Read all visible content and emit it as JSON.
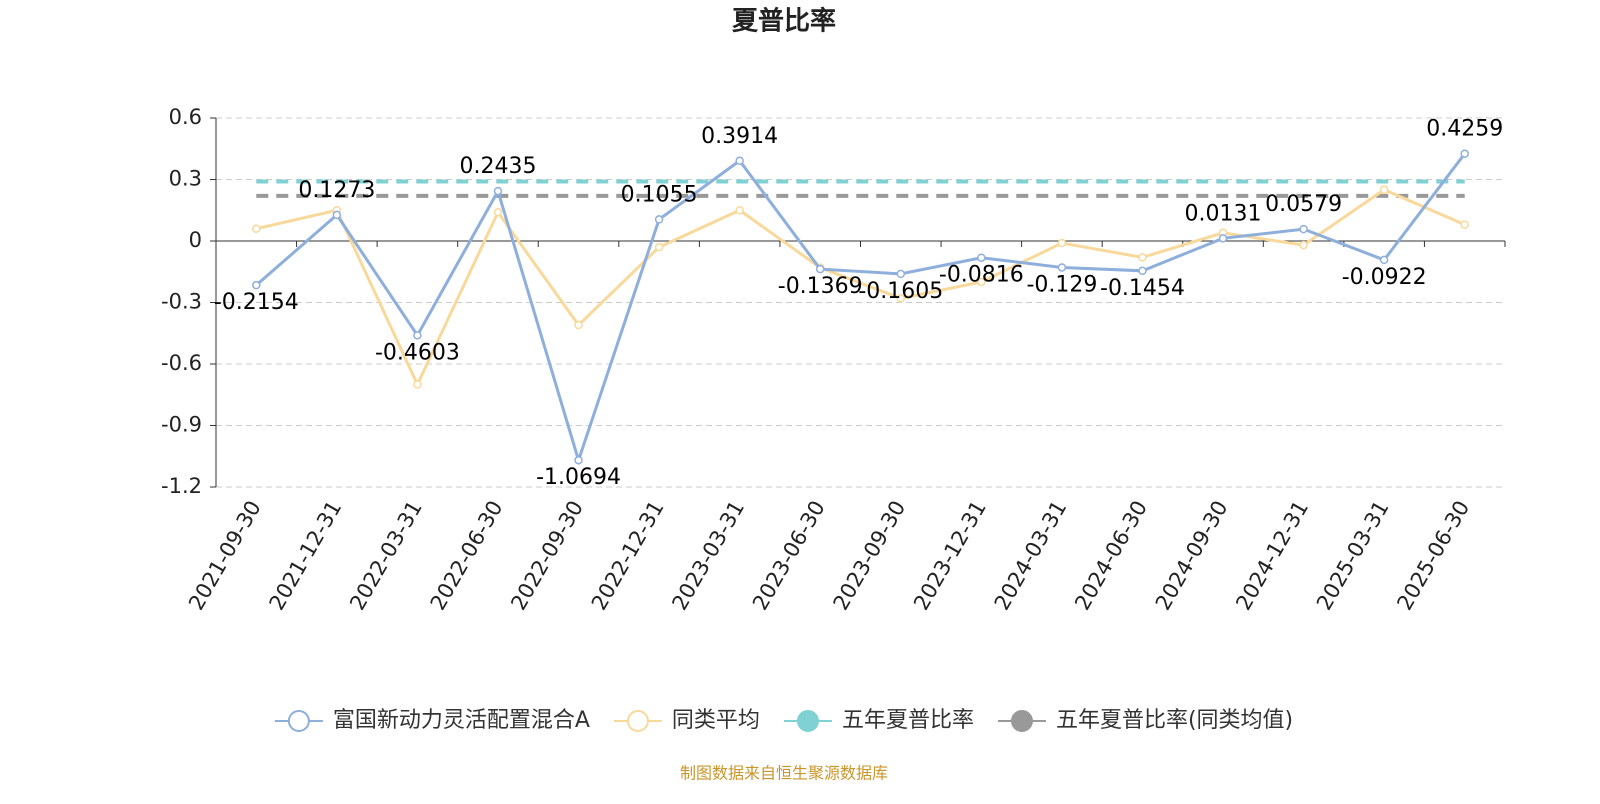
{
  "chart_data": {
    "type": "line",
    "title": "夏普比率",
    "categories": [
      "2021-09-30",
      "2021-12-31",
      "2022-03-31",
      "2022-06-30",
      "2022-09-30",
      "2022-12-31",
      "2023-03-31",
      "2023-06-30",
      "2023-09-30",
      "2023-12-31",
      "2024-03-31",
      "2024-06-30",
      "2024-09-30",
      "2024-12-31",
      "2025-03-31",
      "2025-06-30"
    ],
    "series": [
      {
        "name": "富国新动力灵活配置混合A",
        "color": "#8eaedb",
        "marker": "hollow",
        "labels": true,
        "values": [
          -0.2154,
          0.1273,
          -0.4603,
          0.2435,
          -1.0694,
          0.1055,
          0.3914,
          -0.1369,
          -0.1605,
          -0.0816,
          -0.129,
          -0.1454,
          0.0131,
          0.0579,
          -0.0922,
          0.4259
        ]
      },
      {
        "name": "同类平均",
        "color": "#f9d99b",
        "marker": "hollow",
        "values": [
          0.06,
          0.15,
          -0.7,
          0.14,
          -0.41,
          -0.03,
          0.15,
          -0.13,
          -0.28,
          -0.2,
          -0.01,
          -0.08,
          0.04,
          -0.02,
          0.25,
          0.08
        ]
      },
      {
        "name": "五年夏普比率",
        "color": "#7fd1d3",
        "marker": "filled",
        "dashed": true,
        "values": [
          0.29,
          0.29,
          0.29,
          0.29,
          0.29,
          0.29,
          0.29,
          0.29,
          0.29,
          0.29,
          0.29,
          0.29,
          0.29,
          0.29,
          0.29,
          0.29
        ]
      },
      {
        "name": "五年夏普比率(同类均值)",
        "color": "#999999",
        "marker": "filled",
        "dashed": true,
        "values": [
          0.22,
          0.22,
          0.22,
          0.22,
          0.22,
          0.22,
          0.22,
          0.22,
          0.22,
          0.22,
          0.22,
          0.22,
          0.22,
          0.22,
          0.22,
          0.22
        ]
      }
    ],
    "ylim": [
      -1.2,
      0.6
    ],
    "yticks": [
      0.6,
      0.3,
      0,
      -0.3,
      -0.6,
      -0.9,
      -1.2
    ],
    "grid": true,
    "legend": "bottom",
    "source": "制图数据来自恒生聚源数据库"
  }
}
